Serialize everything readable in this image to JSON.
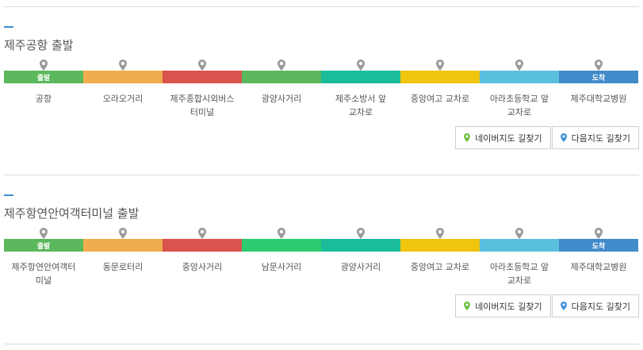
{
  "routes": [
    {
      "title": "제주공항 출발",
      "start_badge": "출발",
      "end_badge": "도착",
      "segment_colors": [
        "#5cb85c",
        "#f0ad4e",
        "#d9534f",
        "#5cb85c",
        "#1abc9c",
        "#f1c40f",
        "#5bc0de",
        "#428bca"
      ],
      "stops": [
        "공항",
        "오라오거리",
        "제주종합시외버스터미널",
        "광양사거리",
        "제주소방서 앞 교차로",
        "중앙여고 교차로",
        "아라초등학교 앞 교차로",
        "제주대학교병원"
      ],
      "naver_label": "네이버지도 길찾기",
      "daum_label": "다음지도 길찾기"
    },
    {
      "title": "제주항연안여객터미널 출발",
      "start_badge": "출발",
      "end_badge": "도착",
      "segment_colors": [
        "#5cb85c",
        "#f0ad4e",
        "#d9534f",
        "#2ecc71",
        "#1abc9c",
        "#f1c40f",
        "#5bc0de",
        "#428bca"
      ],
      "stops": [
        "제주항연안여객터미널",
        "동문로터리",
        "중앙사거리",
        "남문사거리",
        "광양사거리",
        "중앙여고 교차로",
        "아라초등학교 앞 교차로",
        "제주대학교병원"
      ],
      "naver_label": "네이버지도 길찾기",
      "daum_label": "다음지도 길찾기"
    }
  ],
  "colors": {
    "accent": "#3b8fd6",
    "pin": "#9a9a9a",
    "naver_pin": "#6cbf3f",
    "daum_pin": "#3b8fd6"
  }
}
